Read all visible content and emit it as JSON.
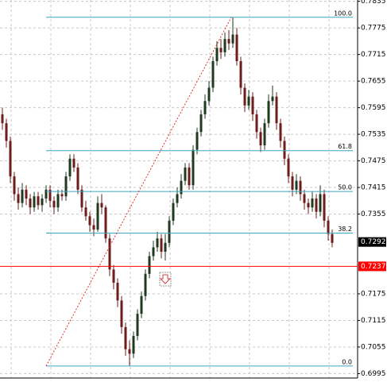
{
  "chart_data": {
    "type": "candlestick",
    "ylim": [
      0.6985,
      0.7838
    ],
    "yticks": [
      0.7835,
      0.7775,
      0.7715,
      0.7655,
      0.7595,
      0.7535,
      0.7475,
      0.7415,
      0.7355,
      0.7175,
      0.7115,
      0.7055,
      0.6995
    ],
    "grid": true,
    "up_color": "#1f3a1f",
    "down_color": "#6e1c1c",
    "open": [
      0.758,
      0.756,
      0.752,
      0.744,
      0.74,
      0.738,
      0.741,
      0.739,
      0.737,
      0.7395,
      0.7375,
      0.739,
      0.741,
      0.7385,
      0.737,
      0.74,
      0.7395,
      0.744,
      0.748,
      0.746,
      0.741,
      0.737,
      0.735,
      0.733,
      0.732,
      0.738,
      0.737,
      0.73,
      0.723,
      0.72,
      0.716,
      0.71,
      0.705,
      0.704,
      0.708,
      0.713,
      0.717,
      0.722,
      0.726,
      0.728,
      0.73,
      0.727,
      0.729,
      0.734,
      0.738,
      0.74,
      0.743,
      0.746,
      0.742,
      0.75,
      0.754,
      0.758,
      0.761,
      0.764,
      0.77,
      0.773,
      0.772,
      0.775,
      0.774,
      0.776,
      0.77,
      0.764,
      0.76,
      0.762,
      0.758,
      0.754,
      0.751,
      0.756,
      0.761,
      0.762,
      0.756,
      0.752,
      0.748,
      0.744,
      0.741,
      0.743,
      0.74,
      0.738,
      0.737,
      0.739,
      0.736,
      0.74,
      0.734,
      0.731
    ],
    "high": [
      0.7595,
      0.757,
      0.753,
      0.745,
      0.7415,
      0.7425,
      0.742,
      0.74,
      0.7405,
      0.7405,
      0.74,
      0.742,
      0.742,
      0.7395,
      0.741,
      0.741,
      0.745,
      0.749,
      0.749,
      0.747,
      0.742,
      0.7385,
      0.736,
      0.7345,
      0.7395,
      0.74,
      0.7375,
      0.731,
      0.724,
      0.721,
      0.717,
      0.711,
      0.707,
      0.709,
      0.714,
      0.718,
      0.723,
      0.727,
      0.7295,
      0.7315,
      0.731,
      0.731,
      0.735,
      0.739,
      0.7415,
      0.7445,
      0.747,
      0.747,
      0.751,
      0.755,
      0.759,
      0.7625,
      0.7655,
      0.771,
      0.7745,
      0.775,
      0.7765,
      0.777,
      0.7799,
      0.7775,
      0.771,
      0.765,
      0.7635,
      0.763,
      0.759,
      0.755,
      0.757,
      0.7625,
      0.7645,
      0.763,
      0.757,
      0.753,
      0.749,
      0.745,
      0.7445,
      0.744,
      0.741,
      0.739,
      0.7405,
      0.74,
      0.742,
      0.741,
      0.735,
      0.732
    ],
    "low": [
      0.7545,
      0.7505,
      0.7425,
      0.7385,
      0.7365,
      0.737,
      0.7375,
      0.7355,
      0.736,
      0.7365,
      0.736,
      0.738,
      0.737,
      0.7355,
      0.736,
      0.7385,
      0.7385,
      0.743,
      0.745,
      0.74,
      0.736,
      0.734,
      0.7315,
      0.7305,
      0.7315,
      0.7355,
      0.729,
      0.7215,
      0.7185,
      0.7145,
      0.7085,
      0.7035,
      0.7012,
      0.703,
      0.707,
      0.712,
      0.716,
      0.721,
      0.725,
      0.727,
      0.7255,
      0.725,
      0.728,
      0.733,
      0.737,
      0.739,
      0.742,
      0.741,
      0.741,
      0.749,
      0.753,
      0.757,
      0.76,
      0.763,
      0.769,
      0.7705,
      0.771,
      0.7725,
      0.773,
      0.769,
      0.7625,
      0.7585,
      0.759,
      0.7565,
      0.7525,
      0.7495,
      0.75,
      0.755,
      0.76,
      0.7545,
      0.7505,
      0.7465,
      0.7425,
      0.7395,
      0.74,
      0.7385,
      0.7365,
      0.7355,
      0.736,
      0.7345,
      0.735,
      0.7325,
      0.7295,
      0.728
    ],
    "close": [
      0.756,
      0.752,
      0.744,
      0.74,
      0.738,
      0.741,
      0.739,
      0.737,
      0.7395,
      0.7375,
      0.739,
      0.741,
      0.7385,
      0.737,
      0.74,
      0.7395,
      0.744,
      0.748,
      0.746,
      0.741,
      0.737,
      0.735,
      0.733,
      0.732,
      0.738,
      0.737,
      0.73,
      0.723,
      0.72,
      0.716,
      0.71,
      0.705,
      0.704,
      0.708,
      0.713,
      0.717,
      0.722,
      0.726,
      0.728,
      0.73,
      0.727,
      0.729,
      0.734,
      0.738,
      0.74,
      0.743,
      0.746,
      0.742,
      0.75,
      0.754,
      0.758,
      0.761,
      0.764,
      0.77,
      0.773,
      0.772,
      0.775,
      0.774,
      0.776,
      0.77,
      0.764,
      0.76,
      0.762,
      0.758,
      0.754,
      0.751,
      0.756,
      0.761,
      0.762,
      0.756,
      0.752,
      0.748,
      0.744,
      0.741,
      0.743,
      0.74,
      0.738,
      0.737,
      0.739,
      0.736,
      0.74,
      0.734,
      0.731,
      0.729
    ],
    "fib_color": "#3aa6c4",
    "fib_levels": [
      {
        "label": "100.0",
        "value": 0.7799
      },
      {
        "label": "61.8",
        "value": 0.7498
      },
      {
        "label": "50.0",
        "value": 0.7406
      },
      {
        "label": "38.2",
        "value": 0.7312
      },
      {
        "label": "0.0",
        "value": 0.7012
      }
    ],
    "price_lines": [
      {
        "value": 0.7292,
        "color": "#000000"
      },
      {
        "value": 0.7237,
        "color": "#ff0000"
      }
    ]
  }
}
